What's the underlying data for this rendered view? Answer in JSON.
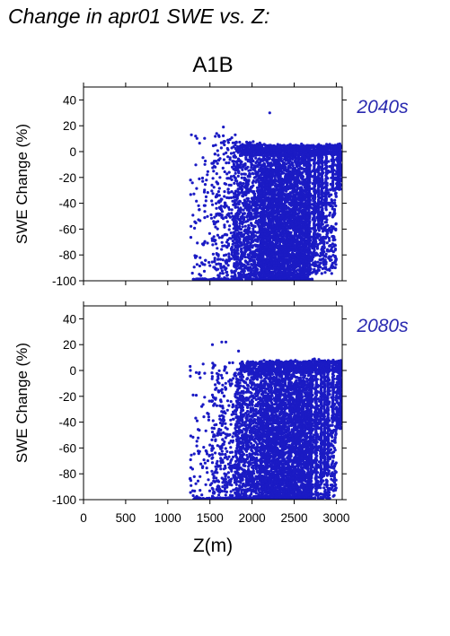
{
  "figure": {
    "title": "Change in apr01 SWE vs. Z:",
    "scenario": "A1B"
  },
  "colors": {
    "points": "#1b1bc4",
    "period_label": "#2a2ab0",
    "frame": "#000000"
  },
  "chart_data": [
    {
      "type": "scatter",
      "period_label": "2040s",
      "ylabel": "SWE Change (%)",
      "xlabel": "",
      "xlim": [
        0,
        3070
      ],
      "ylim": [
        -100,
        50
      ],
      "xticks": [
        0,
        500,
        1000,
        1500,
        2000,
        2500,
        3000
      ],
      "yticks": [
        -100,
        -80,
        -60,
        -40,
        -20,
        0,
        20,
        40
      ],
      "show_xtick_labels": false,
      "grid": false,
      "outliers": [
        {
          "x": 2210,
          "y": 30
        },
        {
          "x": 1660,
          "y": 19
        },
        {
          "x": 1280,
          "y": 13
        },
        {
          "x": 1330,
          "y": 12
        },
        {
          "x": 1580,
          "y": 14
        },
        {
          "x": 1800,
          "y": 13
        },
        {
          "x": 1270,
          "y": -22
        }
      ],
      "density": [
        {
          "x0": 1270,
          "x1": 1520,
          "ymin": -100,
          "ymax": 12,
          "n": 70
        },
        {
          "x0": 1520,
          "x1": 1780,
          "ymin": -100,
          "ymax": 14,
          "n": 260
        },
        {
          "x0": 1780,
          "x1": 2100,
          "ymin": -100,
          "ymax": 8,
          "n": 950
        },
        {
          "x0": 2100,
          "x1": 2680,
          "ymin": -100,
          "ymax": 6,
          "n": 3400
        },
        {
          "x0": 2680,
          "x1": 3000,
          "ymin": -95,
          "ymax": 6,
          "n": 520
        },
        {
          "x0": 3000,
          "x1": 3060,
          "ymin": -30,
          "ymax": 6,
          "n": 120
        }
      ],
      "columns": [
        {
          "x": 2680,
          "ymin": -95,
          "ymax": 5
        },
        {
          "x": 2740,
          "ymin": -80,
          "ymax": 5
        },
        {
          "x": 2790,
          "ymin": -60,
          "ymax": 5
        },
        {
          "x": 2830,
          "ymin": -55,
          "ymax": 5
        },
        {
          "x": 2880,
          "ymin": -45,
          "ymax": 5
        },
        {
          "x": 2960,
          "ymin": -30,
          "ymax": 5
        },
        {
          "x": 3045,
          "ymin": -18,
          "ymax": 6
        }
      ]
    },
    {
      "type": "scatter",
      "period_label": "2080s",
      "ylabel": "SWE Change (%)",
      "xlabel": "Z(m)",
      "xlim": [
        0,
        3070
      ],
      "ylim": [
        -100,
        50
      ],
      "xticks": [
        0,
        500,
        1000,
        1500,
        2000,
        2500,
        3000
      ],
      "yticks": [
        -100,
        -80,
        -60,
        -40,
        -20,
        0,
        20,
        40
      ],
      "show_xtick_labels": true,
      "grid": false,
      "outliers": [
        {
          "x": 1640,
          "y": 22
        },
        {
          "x": 1690,
          "y": 22
        },
        {
          "x": 1530,
          "y": 20
        },
        {
          "x": 1840,
          "y": 15
        },
        {
          "x": 1300,
          "y": -19
        },
        {
          "x": 1420,
          "y": 5
        },
        {
          "x": 1560,
          "y": 4
        }
      ],
      "density": [
        {
          "x0": 1260,
          "x1": 1520,
          "ymin": -100,
          "ymax": 4,
          "n": 70
        },
        {
          "x0": 1520,
          "x1": 1800,
          "ymin": -100,
          "ymax": 6,
          "n": 300
        },
        {
          "x0": 1800,
          "x1": 2100,
          "ymin": -100,
          "ymax": 2,
          "n": 900
        },
        {
          "x0": 2100,
          "x1": 2700,
          "ymin": -100,
          "ymax": 8,
          "n": 3300
        },
        {
          "x0": 2700,
          "x1": 3000,
          "ymin": -100,
          "ymax": 9,
          "n": 560
        },
        {
          "x0": 3000,
          "x1": 3060,
          "ymin": -45,
          "ymax": 9,
          "n": 130
        }
      ],
      "columns": [
        {
          "x": 2700,
          "ymin": -100,
          "ymax": 8
        },
        {
          "x": 2760,
          "ymin": -95,
          "ymax": 8
        },
        {
          "x": 2820,
          "ymin": -85,
          "ymax": 8
        },
        {
          "x": 2860,
          "ymin": -80,
          "ymax": 8
        },
        {
          "x": 2900,
          "ymin": -75,
          "ymax": 8
        },
        {
          "x": 2960,
          "ymin": -40,
          "ymax": 9
        },
        {
          "x": 3050,
          "ymin": -45,
          "ymax": 9
        }
      ]
    }
  ]
}
